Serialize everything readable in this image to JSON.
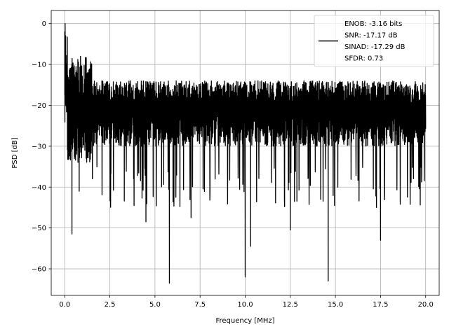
{
  "chart_data": {
    "type": "line",
    "title": "",
    "xlabel": "Frequency [MHz]",
    "ylabel": "PSD [dB]",
    "xlim": [
      -0.75,
      20.75
    ],
    "ylim": [
      -66.5,
      3.2
    ],
    "xticks": [
      0.0,
      2.5,
      5.0,
      7.5,
      10.0,
      12.5,
      15.0,
      17.5,
      20.0
    ],
    "xtick_labels": [
      "0.0",
      "2.5",
      "5.0",
      "7.5",
      "10.0",
      "12.5",
      "15.0",
      "17.5",
      "20.0"
    ],
    "yticks": [
      0,
      -10,
      -20,
      -30,
      -40,
      -50,
      -60
    ],
    "ytick_labels": [
      "0",
      "−10",
      "−20",
      "−30",
      "−40",
      "−50",
      "−60"
    ],
    "grid": true,
    "legend_position": "top-right",
    "legend": [
      "ENOB: -3.16 bits",
      "SNR: -17.17 dB",
      "SINAD: -17.29 dB",
      "SFDR: 0.73"
    ],
    "series": [
      {
        "color": "#000000",
        "noise_band_db": [
          -30,
          -14
        ],
        "x": [
          0.0,
          0.02,
          0.05,
          0.08,
          0.12,
          0.2,
          0.3,
          0.4,
          0.6,
          0.8,
          1.0,
          1.5,
          2.0,
          3.0,
          4.0,
          4.5,
          5.0,
          5.5,
          5.8,
          6.5,
          7.0,
          8.0,
          9.0,
          9.5,
          10.0,
          10.3,
          11.0,
          12.0,
          12.5,
          13.0,
          14.0,
          14.6,
          15.0,
          16.0,
          17.0,
          17.5,
          18.0,
          19.0,
          20.0
        ],
        "y": [
          -17.5,
          0.0,
          -3.0,
          -10.0,
          -21.0,
          -23.0,
          -25.0,
          -51.5,
          -23.0,
          -41.0,
          -23.0,
          -24.0,
          -25.0,
          -24.0,
          -28.0,
          -48.5,
          -22.0,
          -25.0,
          -63.5,
          -25.0,
          -47.5,
          -24.0,
          -24.0,
          -25.0,
          -62.0,
          -54.5,
          -24.0,
          -25.0,
          -50.5,
          -25.0,
          -25.0,
          -63.0,
          -25.0,
          -24.0,
          -25.0,
          -53.0,
          -25.0,
          -25.0,
          -23.0
        ]
      }
    ]
  }
}
